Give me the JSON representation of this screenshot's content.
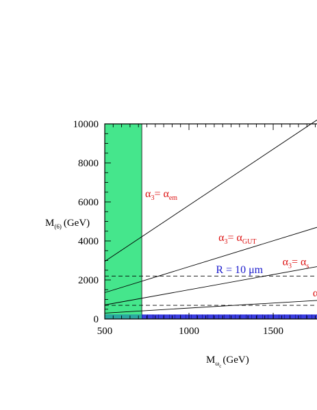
{
  "chart_data": {
    "type": "line",
    "title": "",
    "xlabel": {
      "main": "M",
      "sub": "ω",
      "subsub": "c",
      "unit": "(GeV)"
    },
    "ylabel": {
      "main": "M",
      "sub": "(6)",
      "unit": "(GeV)"
    },
    "xlim": [
      500,
      1760
    ],
    "ylim": [
      0,
      10000
    ],
    "x_ticks": [
      500,
      1000,
      1500
    ],
    "y_ticks": [
      0,
      2000,
      4000,
      6000,
      8000,
      10000
    ],
    "x_minor_step": 50,
    "y_minor_step": 500,
    "colors": {
      "excluded_x": "#45e68c",
      "excluded_y": "#3a3de0",
      "overlap": "#2aa7a0",
      "red": "#dd1111",
      "blue": "#1a1acc"
    },
    "excluded_regions": [
      {
        "axis": "x",
        "from": 500,
        "to": 720,
        "ymax": 10000
      },
      {
        "axis": "y",
        "from": 0,
        "to": 230
      }
    ],
    "series": [
      {
        "x": [
          500,
          1760
        ],
        "y": [
          2950,
          10200
        ],
        "style": "solid"
      },
      {
        "x": [
          500,
          1760
        ],
        "y": [
          1350,
          4700
        ],
        "style": "solid"
      },
      {
        "x": [
          500,
          1760
        ],
        "y": [
          720,
          2680
        ],
        "style": "solid"
      },
      {
        "x": [
          500,
          1760
        ],
        "y": [
          300,
          950
        ],
        "style": "solid"
      },
      {
        "x": [
          500,
          1760
        ],
        "y": [
          2200,
          2200
        ],
        "style": "dashed"
      },
      {
        "x": [
          500,
          1760
        ],
        "y": [
          700,
          700
        ],
        "style": "dashed"
      }
    ],
    "annotations": [
      {
        "greek": "α",
        "sub": "3",
        "rhs_greek": "α",
        "rhs_sub": "em",
        "x": 740,
        "y": 6250,
        "color": "red"
      },
      {
        "greek": "α",
        "sub": "3",
        "rhs_greek": "α",
        "rhs_sub": "GUT",
        "x": 1175,
        "y": 4000,
        "color": "red"
      },
      {
        "greek": "α",
        "sub": "3",
        "rhs_greek": "α",
        "rhs_sub": "s",
        "x": 1555,
        "y": 2750,
        "color": "red"
      },
      {
        "text": "R = 10 μm",
        "x": 1160,
        "y": 2350,
        "color": "blue"
      },
      {
        "greek": "α",
        "x": 1735,
        "y": 1150,
        "color": "red"
      }
    ]
  }
}
